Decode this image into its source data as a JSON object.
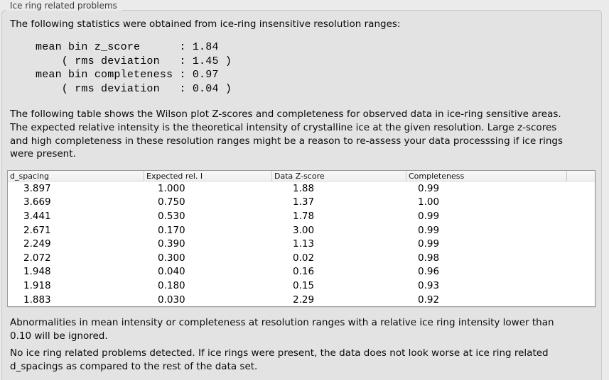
{
  "panel": {
    "title": "Ice ring related problems"
  },
  "intro": {
    "text": "The following statistics were obtained from ice-ring insensitive resolution ranges:"
  },
  "stats_block": {
    "text": "mean bin z_score      : 1.84\n    ( rms deviation   : 1.45 )\nmean bin completeness : 0.97\n    ( rms deviation   : 0.04 )",
    "mean_bin_z_score": "1.84",
    "z_score_rms_deviation": "1.45",
    "mean_bin_completeness": "0.97",
    "completeness_rms_deviation": "0.04"
  },
  "table_intro": {
    "text": "The following table shows the Wilson plot Z-scores and completeness for observed data in ice-ring sensitive areas.\nThe expected relative intensity is the theoretical intensity of crystalline ice at the given resolution. Large z-scores\nand high completeness in these resolution ranges might be a reason to re-assess your data processsing if ice rings\nwere present."
  },
  "table": {
    "columns": [
      "d_spacing",
      "Expected rel. I",
      "Data Z-score",
      "Completeness",
      ""
    ],
    "rows": [
      [
        "3.897",
        "1.000",
        "1.88",
        "0.99"
      ],
      [
        "3.669",
        "0.750",
        "1.37",
        "1.00"
      ],
      [
        "3.441",
        "0.530",
        "1.78",
        "0.99"
      ],
      [
        "2.671",
        "0.170",
        "3.00",
        "0.99"
      ],
      [
        "2.249",
        "0.390",
        "1.13",
        "0.99"
      ],
      [
        "2.072",
        "0.300",
        "0.02",
        "0.98"
      ],
      [
        "1.948",
        "0.040",
        "0.16",
        "0.96"
      ],
      [
        "1.918",
        "0.180",
        "0.15",
        "0.93"
      ],
      [
        "1.883",
        "0.030",
        "2.29",
        "0.92"
      ]
    ]
  },
  "notes": {
    "ignore_note": "Abnormalities in mean intensity or completeness at resolution ranges with a relative ice ring intensity lower than\n0.10 will be ignored.",
    "conclusion": "No ice ring related problems detected. If ice rings were present, the data does not look worse at ice ring related\nd_spacings as compared to the rest of the data set."
  },
  "colors": {
    "page_bg": "#ebebeb",
    "panel_bg": "#e3e3e3",
    "panel_border": "#c9c9c9",
    "table_bg": "#ffffff",
    "table_border": "#9b9b9b",
    "table_header_bg": "#f5f5f5",
    "text": "#0a0a0a",
    "title_text": "#3c3c3c"
  }
}
